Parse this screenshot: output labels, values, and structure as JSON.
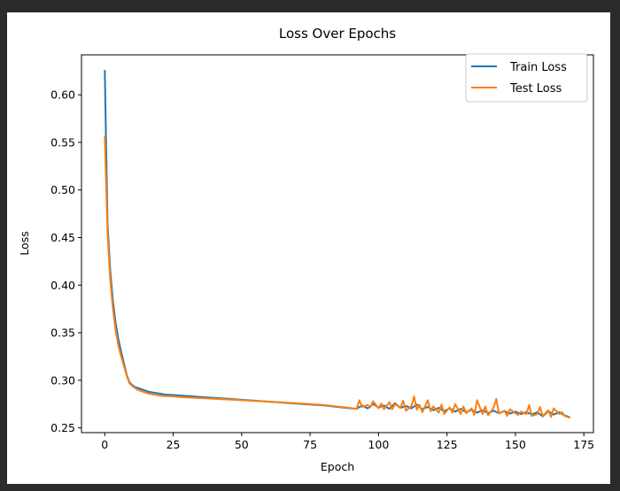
{
  "chart_data": {
    "type": "line",
    "title": "Loss Over Epochs",
    "xlabel": "Epoch",
    "ylabel": "Loss",
    "xlim": [
      -8.5,
      178.5
    ],
    "ylim": [
      0.245,
      0.642
    ],
    "xticks": [
      0,
      25,
      50,
      75,
      100,
      125,
      150,
      175
    ],
    "yticks": [
      0.25,
      0.3,
      0.35,
      0.4,
      0.45,
      0.5,
      0.55,
      0.6
    ],
    "ytick_labels": [
      "0.25",
      "0.30",
      "0.35",
      "0.40",
      "0.45",
      "0.50",
      "0.55",
      "0.60"
    ],
    "grid": false,
    "legend_position": "top-right",
    "series": [
      {
        "name": "Train Loss",
        "color": "#1f77b4",
        "x": [
          0,
          1,
          2,
          3,
          4,
          5,
          6,
          7,
          8,
          9,
          10,
          11,
          12,
          14,
          16,
          18,
          20,
          22,
          25,
          30,
          40,
          50,
          60,
          70,
          80,
          88,
          92,
          94,
          96,
          98,
          100,
          102,
          104,
          106,
          108,
          110,
          112,
          114,
          116,
          118,
          120,
          122,
          124,
          126,
          128,
          130,
          132,
          134,
          136,
          138,
          140,
          142,
          144,
          146,
          148,
          150,
          152,
          154,
          156,
          158,
          160,
          162,
          164,
          166,
          168,
          170
        ],
        "y": [
          0.626,
          0.465,
          0.415,
          0.383,
          0.36,
          0.343,
          0.33,
          0.318,
          0.306,
          0.298,
          0.295,
          0.293,
          0.292,
          0.29,
          0.288,
          0.287,
          0.286,
          0.285,
          0.2845,
          0.2835,
          0.2815,
          0.2795,
          0.2775,
          0.2755,
          0.2735,
          0.271,
          0.27,
          0.2735,
          0.2705,
          0.275,
          0.2715,
          0.2735,
          0.27,
          0.276,
          0.271,
          0.273,
          0.2705,
          0.2745,
          0.2695,
          0.272,
          0.2685,
          0.271,
          0.2675,
          0.2705,
          0.267,
          0.27,
          0.2665,
          0.269,
          0.266,
          0.2685,
          0.2655,
          0.268,
          0.2655,
          0.2675,
          0.265,
          0.267,
          0.2645,
          0.2665,
          0.264,
          0.2665,
          0.262,
          0.2675,
          0.264,
          0.2665,
          0.263,
          0.261
        ]
      },
      {
        "name": "Test Loss",
        "color": "#ff7f0e",
        "x": [
          0,
          1,
          2,
          3,
          4,
          5,
          6,
          7,
          8,
          9,
          10,
          11,
          12,
          14,
          16,
          18,
          20,
          22,
          25,
          30,
          40,
          50,
          60,
          70,
          80,
          88,
          92,
          93,
          94,
          96,
          97,
          98,
          100,
          101,
          102,
          104,
          105,
          106,
          108,
          109,
          110,
          112,
          113,
          114,
          115,
          116,
          118,
          119,
          120,
          122,
          123,
          124,
          126,
          127,
          128,
          130,
          131,
          132,
          134,
          135,
          136,
          138,
          139,
          140,
          142,
          143,
          144,
          146,
          147,
          148,
          150,
          151,
          152,
          154,
          155,
          156,
          158,
          159,
          160,
          162,
          163,
          164,
          166,
          167,
          168,
          170
        ],
        "y": [
          0.557,
          0.455,
          0.405,
          0.375,
          0.352,
          0.336,
          0.325,
          0.315,
          0.305,
          0.297,
          0.294,
          0.292,
          0.29,
          0.288,
          0.286,
          0.285,
          0.284,
          0.2835,
          0.283,
          0.282,
          0.2805,
          0.279,
          0.2775,
          0.276,
          0.274,
          0.2715,
          0.27,
          0.279,
          0.272,
          0.274,
          0.2715,
          0.278,
          0.2705,
          0.2755,
          0.2695,
          0.277,
          0.2695,
          0.275,
          0.271,
          0.2785,
          0.268,
          0.273,
          0.283,
          0.269,
          0.274,
          0.2665,
          0.279,
          0.2675,
          0.2725,
          0.266,
          0.2745,
          0.2645,
          0.2715,
          0.266,
          0.275,
          0.2645,
          0.2725,
          0.2655,
          0.2705,
          0.2635,
          0.279,
          0.2645,
          0.2725,
          0.263,
          0.271,
          0.2805,
          0.265,
          0.268,
          0.2625,
          0.2695,
          0.2655,
          0.2635,
          0.267,
          0.2645,
          0.274,
          0.2625,
          0.2645,
          0.272,
          0.2625,
          0.2685,
          0.2615,
          0.2705,
          0.2645,
          0.2665,
          0.2625,
          0.2605
        ]
      }
    ]
  }
}
